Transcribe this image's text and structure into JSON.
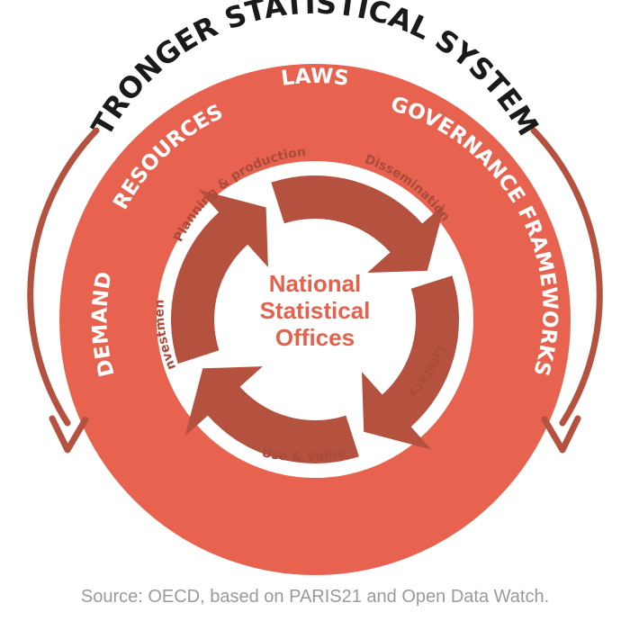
{
  "diagram": {
    "outer_title": "STRONGER STATISTICAL SYSTEMS",
    "outer_ring_labels": {
      "laws": "LAWS",
      "resources": "RESOURCES",
      "governance": "GOVERNANCE FRAMEWORKS",
      "demand": "DEMAND"
    },
    "cycle_labels": {
      "planning": "Planning & production",
      "dissemination": "Dissemination",
      "literacy": "Literacy",
      "use_value": "Use & Value",
      "investment": "Investment"
    },
    "center_lines": [
      "National",
      "Statistical",
      "Offices"
    ]
  },
  "source_note": "Source: OECD, based on PARIS21 and Open Data Watch.",
  "colors": {
    "outer_ring": "#e8634f",
    "inner_cycle": "#b5513f",
    "outer_arrows": "#b5513f",
    "title_text": "#1a1a1a",
    "center_text": "#e4624c",
    "source_text": "#9a9a9a"
  }
}
